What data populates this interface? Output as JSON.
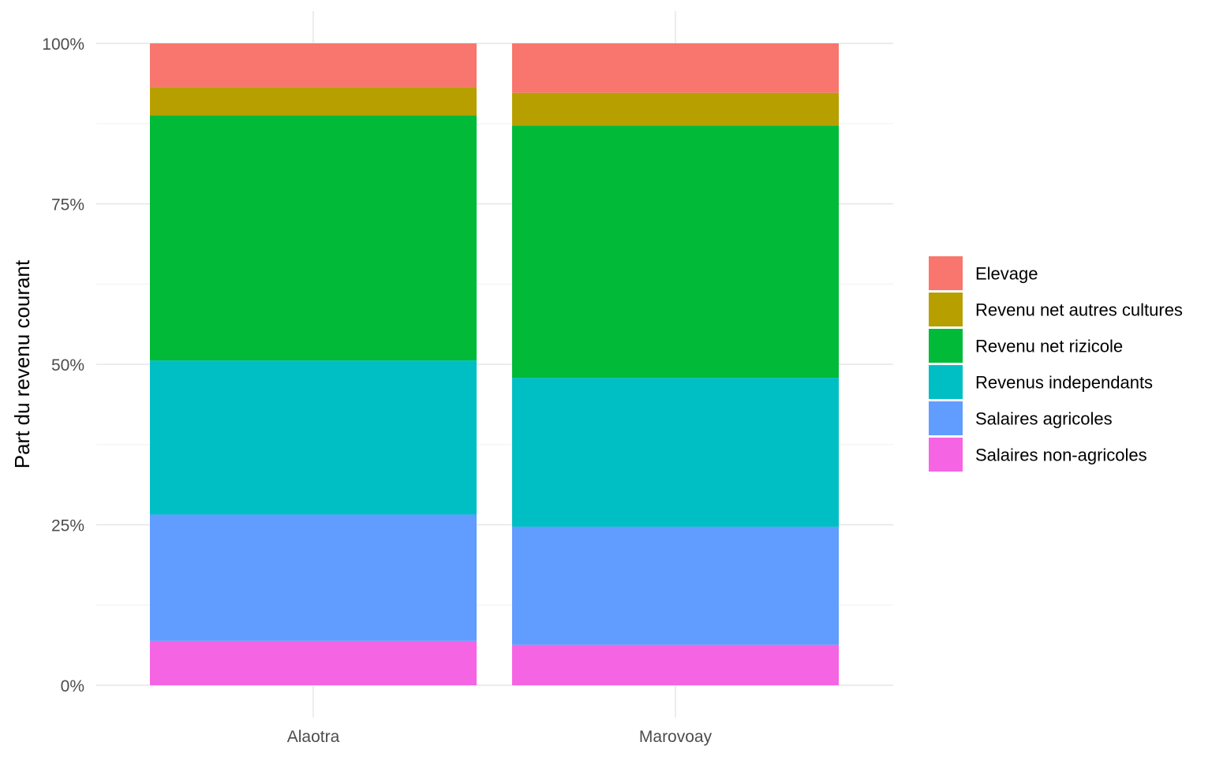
{
  "chart_data": {
    "type": "bar",
    "stacked": true,
    "normalized": true,
    "categories": [
      "Alaotra",
      "Marovoay"
    ],
    "series": [
      {
        "name": "Salaires non-agricoles",
        "color": "#F564E3",
        "values": [
          6.9,
          6.3
        ]
      },
      {
        "name": "Salaires agricoles",
        "color": "#619CFF",
        "values": [
          19.7,
          18.4
        ]
      },
      {
        "name": "Revenus independants",
        "color": "#00BFC4",
        "values": [
          24.0,
          23.2
        ]
      },
      {
        "name": "Revenu net rizicole",
        "color": "#00BA38",
        "values": [
          38.2,
          39.3
        ]
      },
      {
        "name": "Revenu net autres cultures",
        "color": "#B79F00",
        "values": [
          4.4,
          5.1
        ]
      },
      {
        "name": "Elevage",
        "color": "#F8766D",
        "values": [
          6.8,
          7.7
        ]
      }
    ],
    "legend_order": [
      "Elevage",
      "Revenu net autres cultures",
      "Revenu net rizicole",
      "Revenus independants",
      "Salaires agricoles",
      "Salaires non-agricoles"
    ],
    "title": "",
    "xlabel": "",
    "ylabel": "Part du revenu courant",
    "ylim": [
      0,
      100
    ],
    "yticks": [
      0,
      25,
      50,
      75,
      100
    ],
    "ytick_labels": [
      "0%",
      "25%",
      "50%",
      "75%",
      "100%"
    ],
    "grid": true,
    "legend_position": "right"
  }
}
